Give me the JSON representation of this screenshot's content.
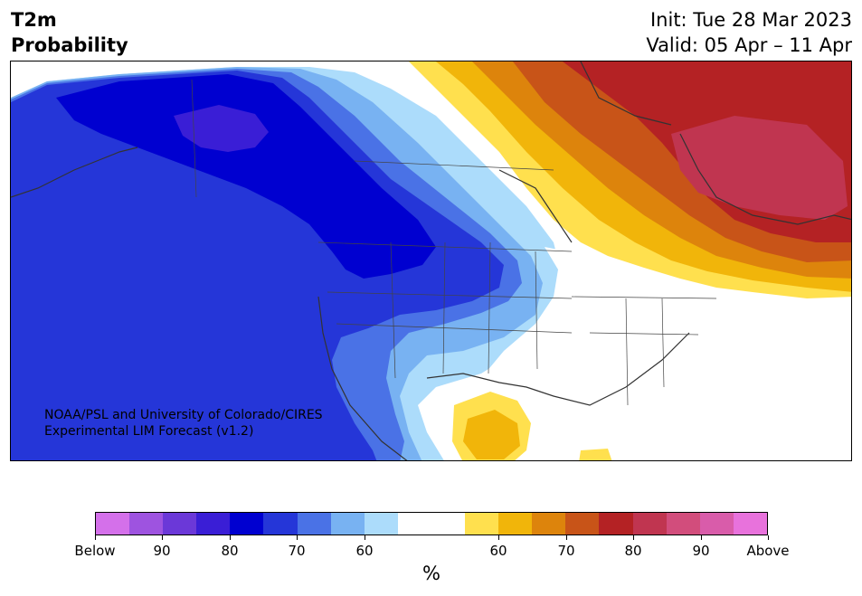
{
  "title": {
    "line1": "T2m",
    "line2": "Probability",
    "init": "Init: Tue 28 Mar 2023",
    "valid": "Valid: 05 Apr – 11 Apr"
  },
  "credit": {
    "line1": "NOAA/PSL and University of Colorado/CIRES",
    "line2": "Experimental LIM Forecast (v1.2)"
  },
  "colorbar": {
    "unit": "%",
    "colors": [
      "#d470ea",
      "#9e53e0",
      "#6b38d8",
      "#3a1ed6",
      "#0000d0",
      "#2536d8",
      "#4a72e6",
      "#78b2f2",
      "#acdcfb",
      "#ffffff",
      "#ffffff",
      "#ffe04e",
      "#f1b50a",
      "#dd840c",
      "#c85418",
      "#b42224",
      "#c03550",
      "#d24d7c",
      "#d95caa",
      "#e872dc"
    ],
    "tick_labels": [
      "Below",
      "90",
      "80",
      "70",
      "60",
      "60",
      "70",
      "80",
      "90",
      "Above"
    ]
  },
  "map": {
    "colors": {
      "blue_90": "#3a1ed6",
      "blue_80": "#0000d0",
      "blue_70": "#2536d8",
      "blue_60": "#4a72e6",
      "blue_55": "#78b2f2",
      "blue_50": "#acdcfb",
      "neutral": "#ffffff",
      "warm_50": "#ffe04e",
      "warm_55": "#f1b50a",
      "warm_60": "#dd840c",
      "warm_65": "#c85418",
      "warm_70": "#b42224",
      "warm_75": "#c03550"
    }
  }
}
